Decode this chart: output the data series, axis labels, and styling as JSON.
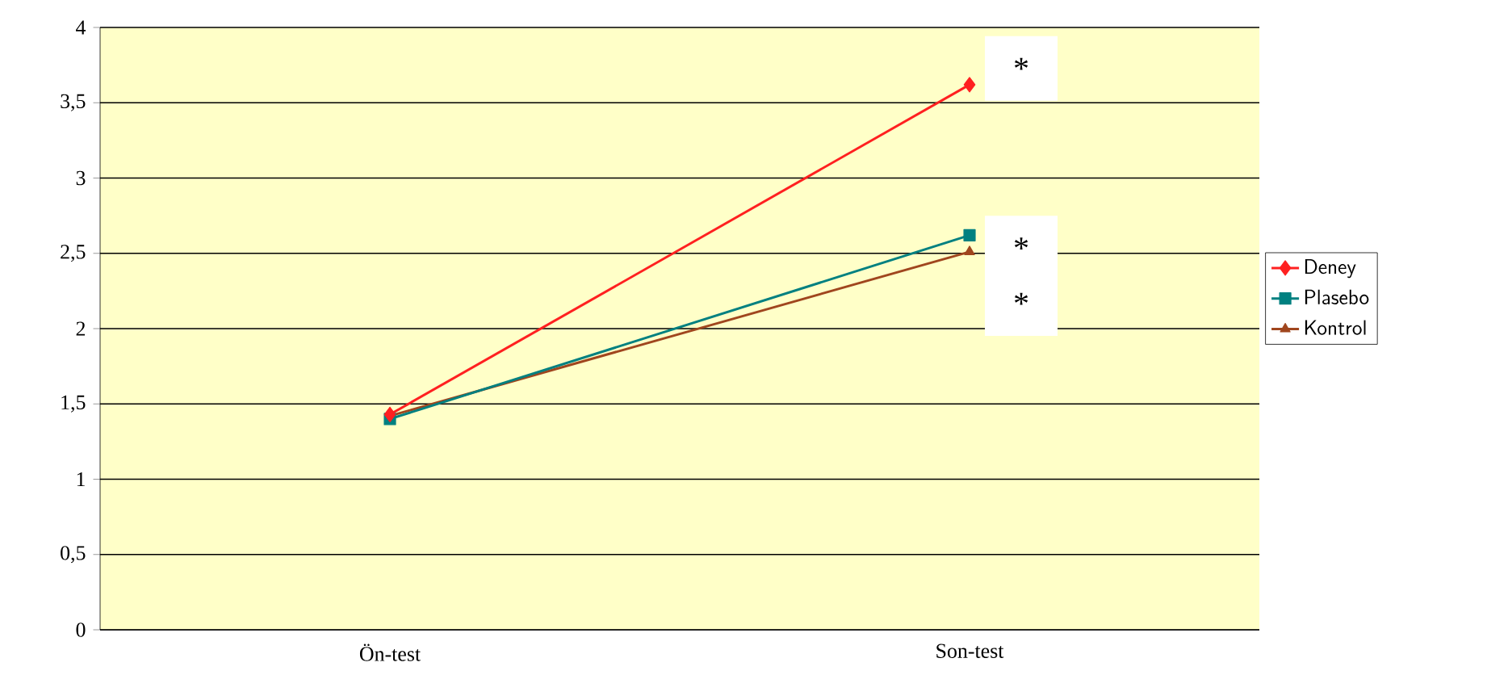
{
  "chart_data": {
    "type": "line",
    "categories": [
      "Ön-test",
      "Son-test"
    ],
    "series": [
      {
        "name": "Deney",
        "color": "#ff2020",
        "values": [
          1.43,
          3.62
        ],
        "marker": "diamond"
      },
      {
        "name": "Plasebo",
        "color": "#008080",
        "values": [
          1.4,
          2.62
        ],
        "marker": "square"
      },
      {
        "name": "Kontrol",
        "color": "#a0461e",
        "values": [
          1.42,
          2.51
        ],
        "marker": "triangle"
      }
    ],
    "ylim": [
      0,
      4
    ],
    "yticks": [
      0,
      {
        "value": 0.5,
        "label": "0,5"
      },
      1,
      {
        "value": 1.5,
        "label": "1,5"
      },
      2,
      {
        "value": 2.5,
        "label": "2,5"
      },
      3,
      {
        "value": 3.5,
        "label": "3,5"
      },
      4
    ],
    "grid": "y",
    "legend": "right",
    "line_style": "solid",
    "annotations": [
      "*",
      "*",
      "*"
    ]
  }
}
